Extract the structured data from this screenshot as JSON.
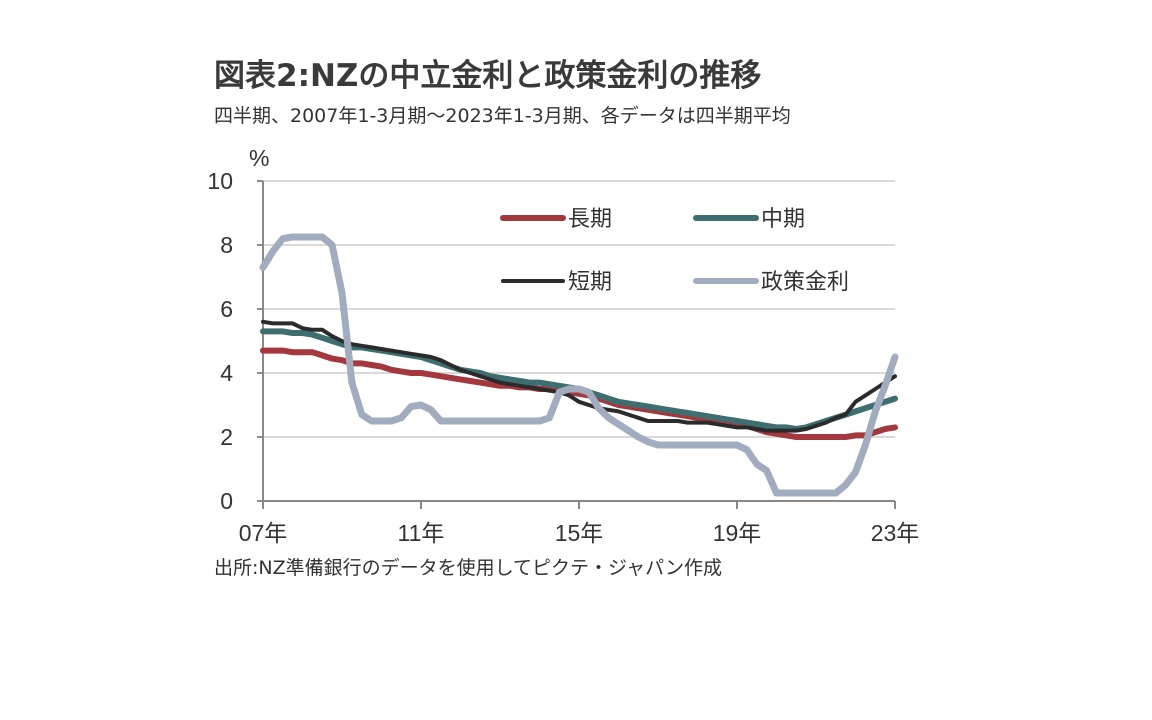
{
  "header": {
    "title": "図表2:NZの中立金利と政策金利の推移",
    "subtitle": "四半期、2007年1-3月期～2023年1-3月期、各データは四半期平均"
  },
  "footer": {
    "source": "出所:NZ準備銀行のデータを使用してピクテ・ジャパン作成"
  },
  "chart_data": {
    "type": "line",
    "title": "図表2:NZの中立金利と政策金利の推移",
    "subtitle": "四半期、2007年1-3月期～2023年1-3月期、各データは四半期平均",
    "xlabel": "",
    "ylabel": "%",
    "ylim": [
      0,
      10
    ],
    "yticks": [
      0,
      2,
      4,
      6,
      8,
      10
    ],
    "ytick_labels": [
      "0",
      "2",
      "4",
      "6",
      "8",
      "10"
    ],
    "xlim": [
      2007.0,
      2023.0
    ],
    "xticks": [
      2007,
      2011,
      2015,
      2019,
      2023
    ],
    "xtick_labels": [
      "07年",
      "11年",
      "15年",
      "19年",
      "23年"
    ],
    "x_start": 2007.0,
    "x_step": 0.25,
    "grid": true,
    "legend_placement": "top-right",
    "series": [
      {
        "name": "長期",
        "color": "#a5383f",
        "values": [
          4.7,
          4.7,
          4.7,
          4.65,
          4.65,
          4.65,
          4.55,
          4.45,
          4.4,
          4.3,
          4.3,
          4.25,
          4.2,
          4.1,
          4.05,
          4.0,
          4.0,
          3.95,
          3.9,
          3.85,
          3.8,
          3.75,
          3.7,
          3.65,
          3.6,
          3.6,
          3.55,
          3.55,
          3.5,
          3.5,
          3.45,
          3.4,
          3.35,
          3.3,
          3.2,
          3.1,
          3.0,
          2.95,
          2.9,
          2.85,
          2.8,
          2.75,
          2.7,
          2.65,
          2.6,
          2.55,
          2.5,
          2.45,
          2.4,
          2.35,
          2.25,
          2.15,
          2.1,
          2.05,
          2.0,
          2.0,
          2.0,
          2.0,
          2.0,
          2.0,
          2.05,
          2.05,
          2.15,
          2.25,
          2.3
        ]
      },
      {
        "name": "中期",
        "color": "#3e6e70",
        "values": [
          5.3,
          5.3,
          5.3,
          5.25,
          5.25,
          5.2,
          5.1,
          5.0,
          4.9,
          4.8,
          4.8,
          4.75,
          4.7,
          4.65,
          4.6,
          4.55,
          4.5,
          4.4,
          4.3,
          4.2,
          4.1,
          4.05,
          4.0,
          3.9,
          3.85,
          3.8,
          3.75,
          3.7,
          3.7,
          3.65,
          3.6,
          3.55,
          3.5,
          3.4,
          3.3,
          3.2,
          3.1,
          3.05,
          3.0,
          2.95,
          2.9,
          2.85,
          2.8,
          2.75,
          2.7,
          2.65,
          2.6,
          2.55,
          2.5,
          2.45,
          2.4,
          2.35,
          2.3,
          2.3,
          2.25,
          2.3,
          2.4,
          2.5,
          2.6,
          2.7,
          2.8,
          2.9,
          3.0,
          3.1,
          3.2
        ]
      },
      {
        "name": "短期",
        "color": "#2b2b2b",
        "values": [
          5.6,
          5.55,
          5.55,
          5.55,
          5.4,
          5.35,
          5.35,
          5.15,
          5.0,
          4.9,
          4.85,
          4.8,
          4.75,
          4.7,
          4.65,
          4.6,
          4.55,
          4.5,
          4.4,
          4.25,
          4.1,
          4.0,
          3.9,
          3.8,
          3.7,
          3.65,
          3.6,
          3.55,
          3.5,
          3.45,
          3.4,
          3.3,
          3.1,
          3.0,
          2.9,
          2.85,
          2.8,
          2.7,
          2.6,
          2.5,
          2.5,
          2.5,
          2.5,
          2.45,
          2.45,
          2.45,
          2.4,
          2.35,
          2.3,
          2.3,
          2.25,
          2.2,
          2.2,
          2.2,
          2.2,
          2.25,
          2.35,
          2.45,
          2.6,
          2.7,
          3.1,
          3.3,
          3.5,
          3.7,
          3.9
        ]
      },
      {
        "name": "政策金利",
        "color": "#a1adbf",
        "values": [
          7.3,
          7.8,
          8.2,
          8.25,
          8.25,
          8.25,
          8.25,
          8.0,
          6.5,
          3.7,
          2.7,
          2.5,
          2.5,
          2.5,
          2.6,
          2.95,
          3.0,
          2.85,
          2.5,
          2.5,
          2.5,
          2.5,
          2.5,
          2.5,
          2.5,
          2.5,
          2.5,
          2.5,
          2.5,
          2.6,
          3.4,
          3.5,
          3.5,
          3.4,
          2.9,
          2.6,
          2.4,
          2.2,
          2.0,
          1.85,
          1.75,
          1.75,
          1.75,
          1.75,
          1.75,
          1.75,
          1.75,
          1.75,
          1.75,
          1.6,
          1.15,
          0.95,
          0.25,
          0.25,
          0.25,
          0.25,
          0.25,
          0.25,
          0.25,
          0.5,
          0.9,
          1.75,
          2.8,
          3.6,
          4.5
        ]
      }
    ],
    "legend": [
      "長期",
      "中期",
      "短期",
      "政策金利"
    ]
  }
}
